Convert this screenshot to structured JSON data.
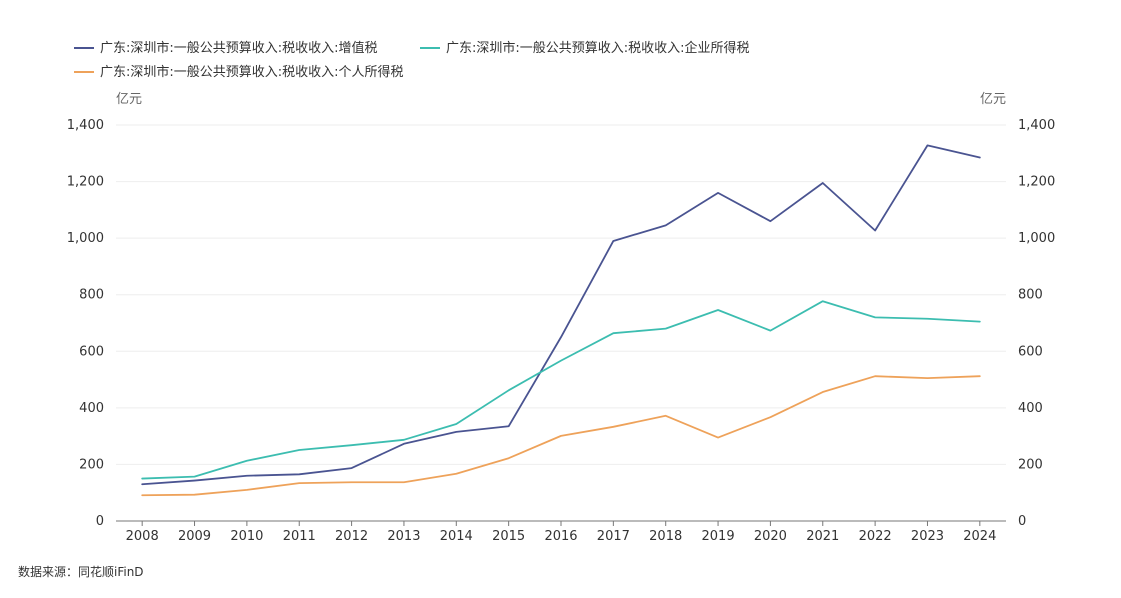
{
  "source": "数据来源：同花顺iFinD",
  "chart_data": {
    "type": "line",
    "title": "",
    "x": [
      "2008",
      "2009",
      "2010",
      "2011",
      "2012",
      "2013",
      "2014",
      "2015",
      "2016",
      "2017",
      "2018",
      "2019",
      "2020",
      "2021",
      "2022",
      "2023",
      "2024"
    ],
    "y_left": {
      "unit": "亿元",
      "min": 0,
      "max": 1400,
      "ticks": [
        "0",
        "200",
        "400",
        "600",
        "800",
        "1,000",
        "1,200",
        "1,400"
      ]
    },
    "y_right": {
      "unit": "亿元",
      "min": 0,
      "max": 1400,
      "ticks": [
        "0",
        "200",
        "400",
        "600",
        "800",
        "1,000",
        "1,200",
        "1,400"
      ]
    },
    "grid": true,
    "legend_position": "top-left",
    "series": [
      {
        "name": "广东:深圳市:一般公共预算收入:税收收入:增值税",
        "color": "#4a5491",
        "values": [
          130,
          143,
          160,
          165,
          187,
          273,
          315,
          335,
          650,
          990,
          1045,
          1160,
          1060,
          1195,
          1027,
          1328,
          1285
        ]
      },
      {
        "name": "广东:深圳市:一般公共预算收入:税收收入:企业所得税",
        "color": "#3cbdb0",
        "values": [
          150,
          157,
          213,
          251,
          268,
          287,
          343,
          462,
          567,
          664,
          680,
          746,
          673,
          777,
          720,
          715,
          705
        ]
      },
      {
        "name": "广东:深圳市:一般公共预算收入:税收收入:个人所得税",
        "color": "#eea25a",
        "values": [
          91,
          93,
          110,
          134,
          137,
          137,
          167,
          222,
          301,
          333,
          372,
          295,
          367,
          456,
          512,
          505,
          512
        ]
      }
    ]
  }
}
